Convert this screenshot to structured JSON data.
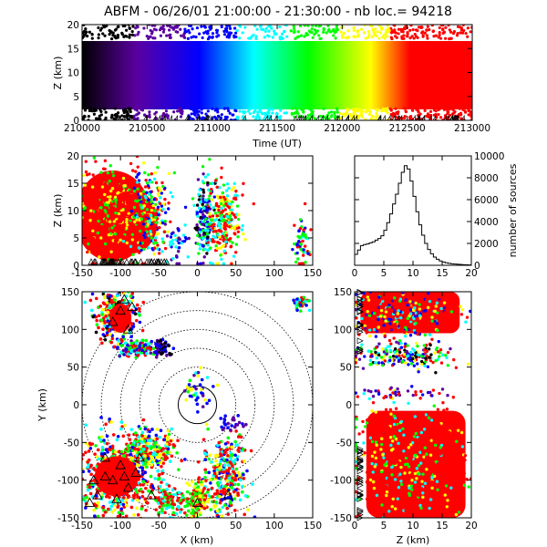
{
  "title": "ABFM - 06/26/01 21:00:00 - 21:30:00 - nb loc.= 94218",
  "chart_data": [
    {
      "id": "time-height",
      "type": "scatter",
      "xlabel": "Time (UT)",
      "ylabel": "Z (km)",
      "xlim": [
        210000,
        213000
      ],
      "ylim": [
        0,
        20
      ],
      "xticks": [
        "210000",
        "210500",
        "211000",
        "211500",
        "212000",
        "212500",
        "213000"
      ],
      "yticks": [
        "0",
        "5",
        "10",
        "15",
        "20"
      ],
      "color_by": "time",
      "colormap": [
        "#000000",
        "#5a00a0",
        "#0000ff",
        "#00ffff",
        "#00ff00",
        "#ffff00",
        "#ff0000"
      ]
    },
    {
      "id": "x-z",
      "type": "scatter",
      "ylabel": "Z (km)",
      "xlim": [
        -150,
        150
      ],
      "ylim": [
        0,
        20
      ],
      "xticks": [
        "-150",
        "-100",
        "-50",
        "0",
        "50",
        "100",
        "150"
      ],
      "yticks": [
        "0",
        "5",
        "10",
        "15",
        "20"
      ]
    },
    {
      "id": "altitude-histogram",
      "type": "line",
      "ylabel": "number of sources",
      "xlim": [
        0,
        20
      ],
      "ylim": [
        0,
        10000
      ],
      "xticks": [
        "0",
        "5",
        "10",
        "15",
        "20"
      ],
      "yticks": [
        "0",
        "2000",
        "4000",
        "6000",
        "8000",
        "10000"
      ],
      "x": [
        0,
        0.5,
        1,
        1.5,
        2,
        2.5,
        3,
        3.5,
        4,
        4.5,
        5,
        5.5,
        6,
        6.5,
        7,
        7.5,
        8,
        8.5,
        9,
        9.5,
        10,
        10.5,
        11,
        11.5,
        12,
        12.5,
        13,
        13.5,
        14,
        14.5,
        15,
        15.5,
        16,
        16.5,
        17,
        17.5,
        18,
        18.5,
        19,
        19.5
      ],
      "values": [
        1000,
        1400,
        1800,
        1900,
        1950,
        2050,
        2150,
        2300,
        2450,
        2700,
        3200,
        3900,
        4700,
        5600,
        6500,
        7500,
        8500,
        9100,
        8800,
        7700,
        6300,
        4900,
        3700,
        2750,
        2000,
        1450,
        1050,
        750,
        550,
        400,
        300,
        230,
        180,
        140,
        110,
        90,
        70,
        55,
        45,
        35
      ]
    },
    {
      "id": "x-y",
      "type": "scatter",
      "xlabel": "X (km)",
      "ylabel": "Y (km)",
      "xlim": [
        -150,
        150
      ],
      "ylim": [
        -150,
        150
      ],
      "xticks": [
        "-150",
        "-100",
        "-50",
        "0",
        "50",
        "100",
        "150"
      ],
      "yticks": [
        "-150",
        "-100",
        "-50",
        "0",
        "50",
        "100",
        "150"
      ],
      "range_rings_km": [
        25,
        50,
        75,
        100,
        125,
        150
      ]
    },
    {
      "id": "z-y",
      "type": "scatter",
      "xlabel": "Z (km)",
      "xlim": [
        0,
        20
      ],
      "ylim": [
        -150,
        150
      ],
      "xticks": [
        "0",
        "5",
        "10",
        "15",
        "20"
      ],
      "yticks": [
        "-150",
        "-100",
        "-50",
        "0",
        "50",
        "100",
        "150"
      ]
    }
  ]
}
